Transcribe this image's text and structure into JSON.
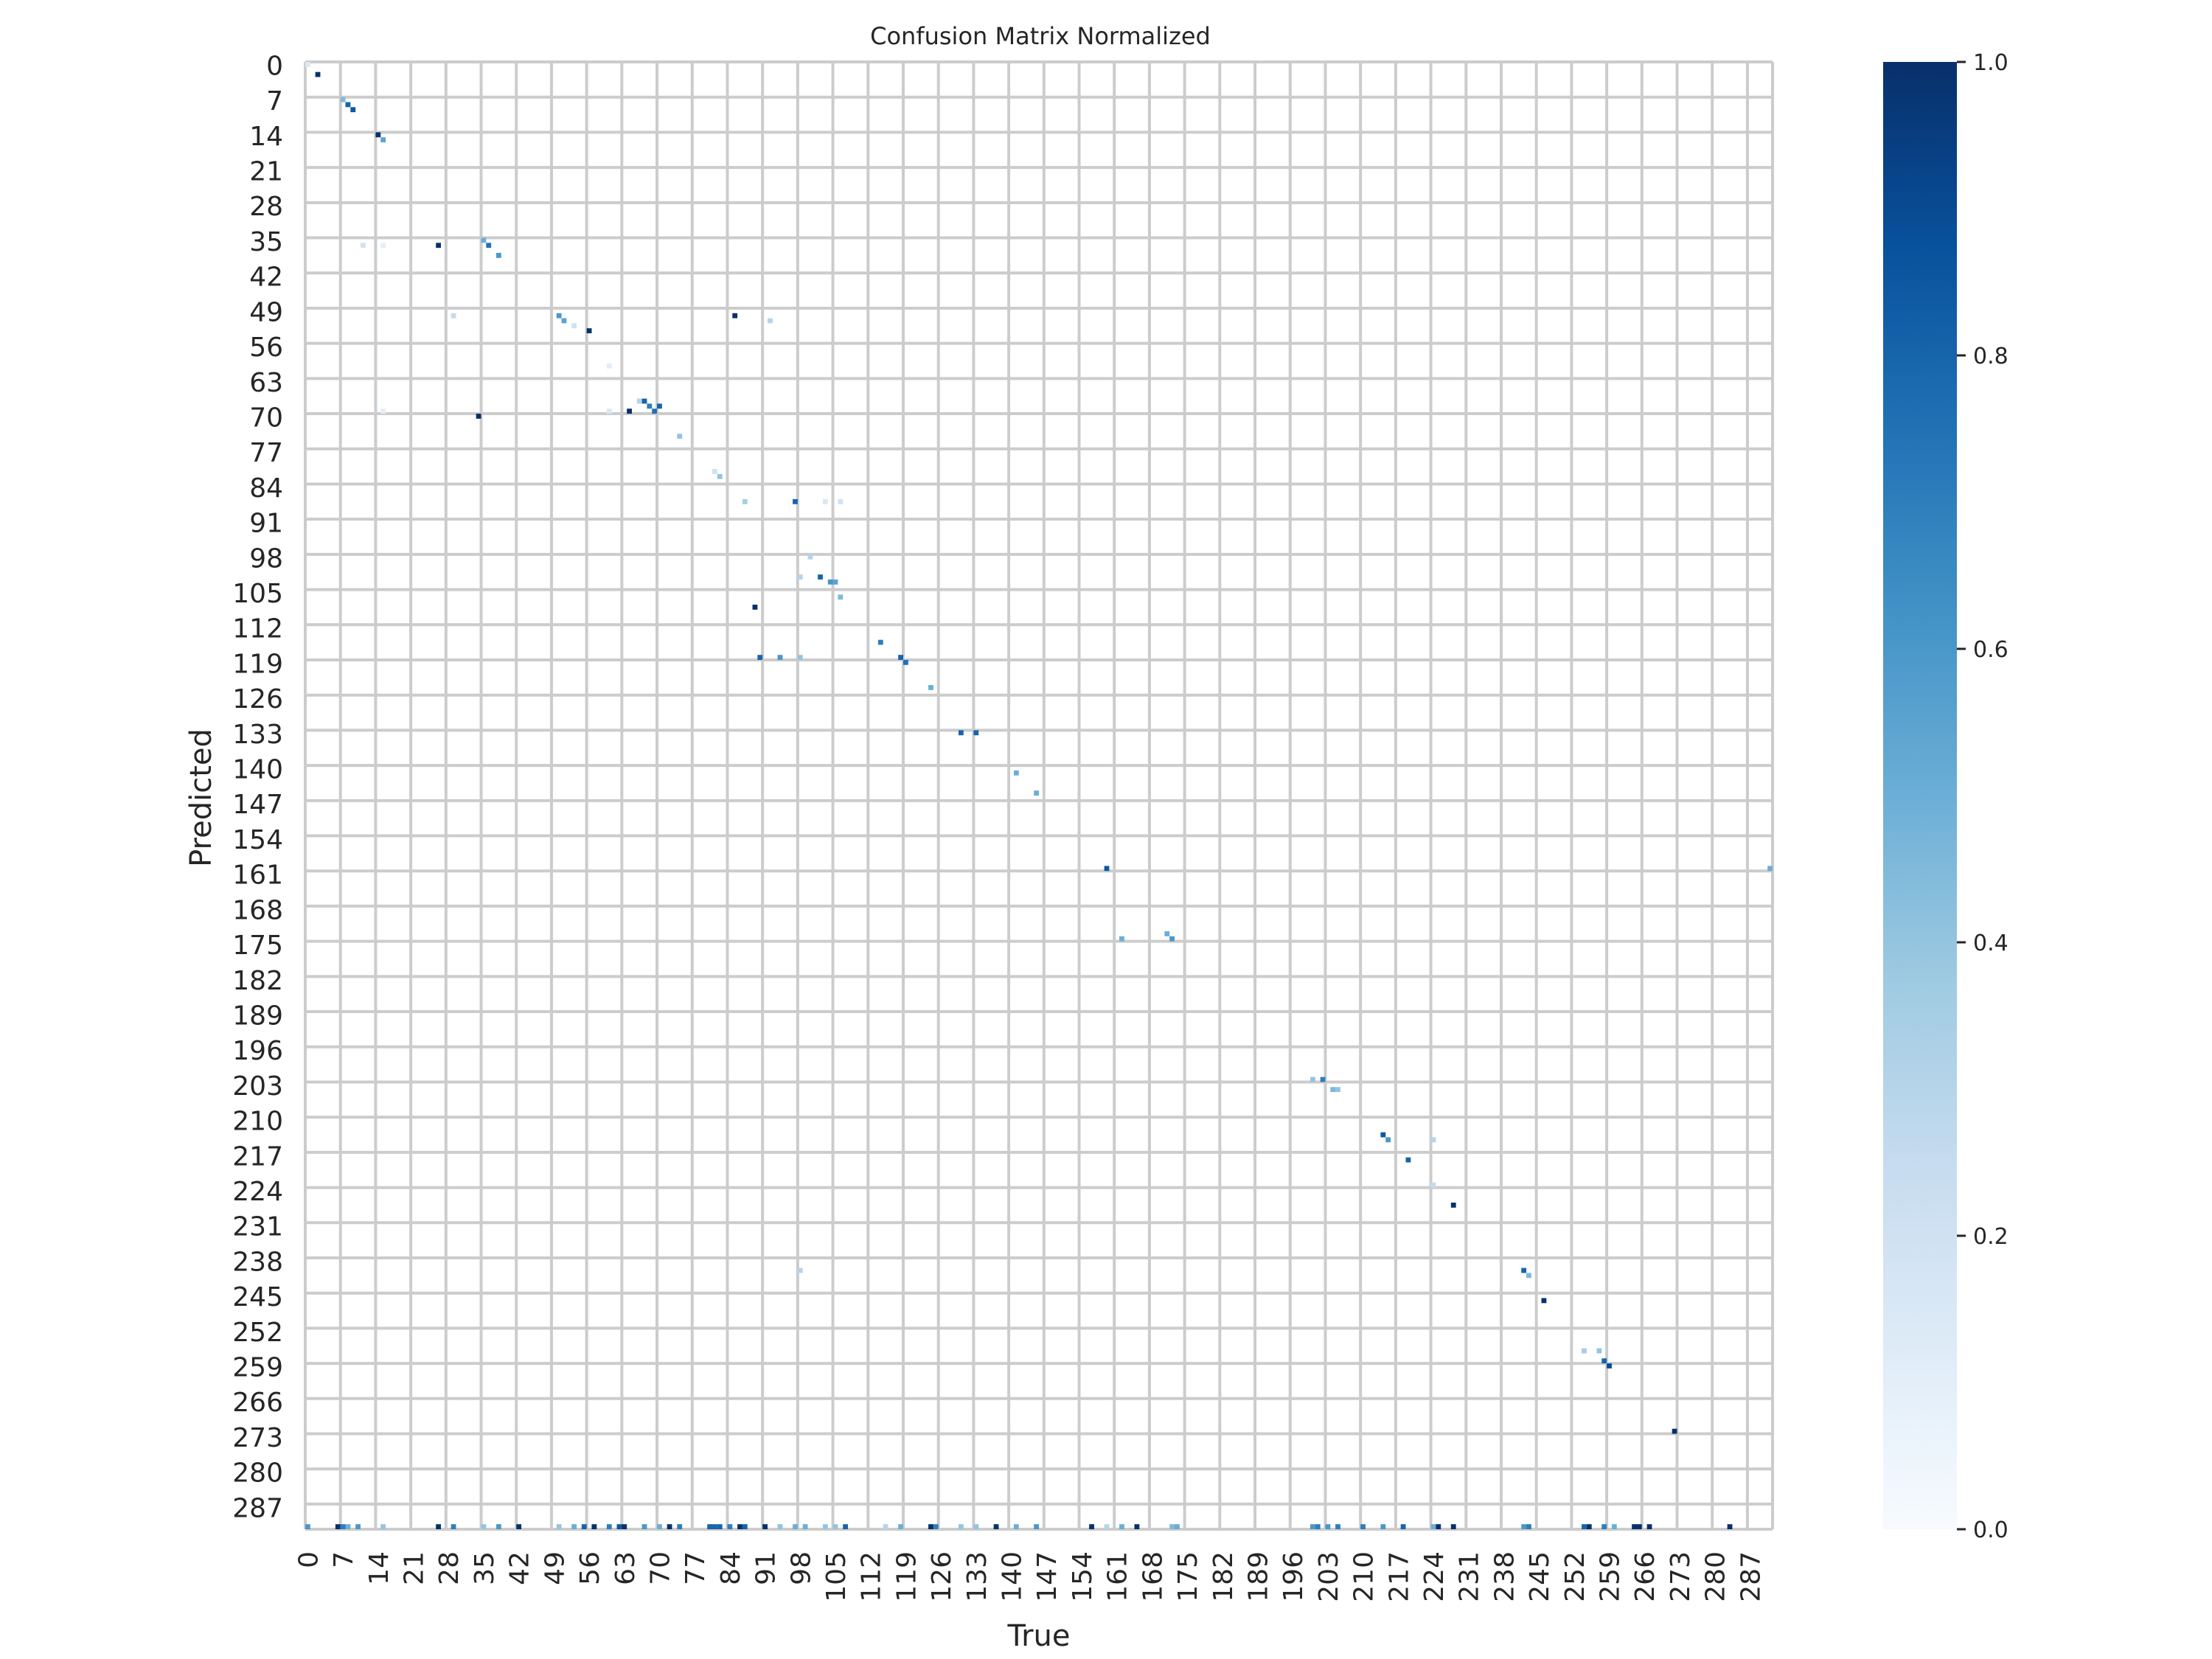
{
  "chart_data": {
    "type": "heatmap",
    "title": "Confusion Matrix Normalized",
    "xlabel": "True",
    "ylabel": "Predicted",
    "n_classes": 292,
    "x_tick_labels": [
      "0",
      "7",
      "14",
      "21",
      "28",
      "35",
      "42",
      "49",
      "56",
      "63",
      "70",
      "77",
      "84",
      "91",
      "98",
      "105",
      "112",
      "119",
      "126",
      "133",
      "140",
      "147",
      "154",
      "161",
      "168",
      "175",
      "182",
      "189",
      "196",
      "203",
      "210",
      "217",
      "224",
      "231",
      "238",
      "245",
      "252",
      "259",
      "266",
      "273",
      "280",
      "287"
    ],
    "y_tick_labels": [
      "0",
      "7",
      "14",
      "21",
      "28",
      "35",
      "42",
      "49",
      "56",
      "63",
      "70",
      "77",
      "84",
      "91",
      "98",
      "105",
      "112",
      "119",
      "126",
      "133",
      "140",
      "147",
      "154",
      "161",
      "168",
      "175",
      "182",
      "189",
      "196",
      "203",
      "210",
      "217",
      "224",
      "231",
      "238",
      "245",
      "252",
      "259",
      "266",
      "273",
      "280",
      "287"
    ],
    "tick_step": 7,
    "colorbar": {
      "colormap": "Blues",
      "range": [
        0.0,
        1.0
      ],
      "tick_labels": [
        "0.0",
        "0.2",
        "0.4",
        "0.6",
        "0.8",
        "1.0"
      ],
      "tick_values": [
        0.0,
        0.2,
        0.4,
        0.6,
        0.8,
        1.0
      ]
    },
    "grid": true,
    "grid_color": "#cccccc",
    "cells_format": "[true_index, predicted_index, value]",
    "cells": [
      [
        0,
        0,
        0.15
      ],
      [
        2,
        2,
        1.0
      ],
      [
        7,
        7,
        0.45
      ],
      [
        8,
        8,
        0.8
      ],
      [
        9,
        9,
        0.85
      ],
      [
        14,
        14,
        1.0
      ],
      [
        15,
        15,
        0.55
      ],
      [
        11,
        36,
        0.2
      ],
      [
        15,
        36,
        0.1
      ],
      [
        26,
        36,
        1.0
      ],
      [
        35,
        35,
        0.5
      ],
      [
        36,
        36,
        0.75
      ],
      [
        38,
        38,
        0.6
      ],
      [
        29,
        50,
        0.25
      ],
      [
        50,
        50,
        0.6
      ],
      [
        51,
        51,
        0.55
      ],
      [
        53,
        52,
        0.2
      ],
      [
        56,
        53,
        1.0
      ],
      [
        85,
        50,
        1.0
      ],
      [
        92,
        51,
        0.3
      ],
      [
        60,
        60,
        0.1
      ],
      [
        15,
        69,
        0.1
      ],
      [
        34,
        70,
        1.0
      ],
      [
        60,
        69,
        0.15
      ],
      [
        64,
        69,
        1.0
      ],
      [
        66,
        67,
        0.3
      ],
      [
        67,
        67,
        0.8
      ],
      [
        68,
        68,
        0.7
      ],
      [
        69,
        69,
        0.75
      ],
      [
        70,
        68,
        0.8
      ],
      [
        74,
        74,
        0.4
      ],
      [
        81,
        81,
        0.2
      ],
      [
        82,
        82,
        0.4
      ],
      [
        87,
        87,
        0.35
      ],
      [
        97,
        87,
        0.8
      ],
      [
        103,
        87,
        0.15
      ],
      [
        106,
        87,
        0.2
      ],
      [
        100,
        98,
        0.3
      ],
      [
        102,
        102,
        0.8
      ],
      [
        98,
        102,
        0.3
      ],
      [
        104,
        103,
        0.6
      ],
      [
        105,
        103,
        0.55
      ],
      [
        106,
        106,
        0.45
      ],
      [
        89,
        108,
        1.0
      ],
      [
        90,
        118,
        0.8
      ],
      [
        94,
        118,
        0.6
      ],
      [
        98,
        118,
        0.4
      ],
      [
        114,
        115,
        0.7
      ],
      [
        118,
        118,
        0.8
      ],
      [
        119,
        119,
        0.75
      ],
      [
        124,
        124,
        0.5
      ],
      [
        130,
        133,
        0.8
      ],
      [
        133,
        133,
        0.8
      ],
      [
        141,
        141,
        0.5
      ],
      [
        145,
        145,
        0.5
      ],
      [
        159,
        160,
        0.85
      ],
      [
        162,
        174,
        0.5
      ],
      [
        171,
        173,
        0.5
      ],
      [
        172,
        174,
        0.6
      ],
      [
        200,
        202,
        0.4
      ],
      [
        202,
        202,
        0.7
      ],
      [
        204,
        204,
        0.45
      ],
      [
        205,
        204,
        0.4
      ],
      [
        214,
        213,
        0.85
      ],
      [
        215,
        214,
        0.6
      ],
      [
        219,
        218,
        0.8
      ],
      [
        224,
        214,
        0.3
      ],
      [
        224,
        223,
        0.25
      ],
      [
        228,
        227,
        1.0
      ],
      [
        242,
        240,
        0.8
      ],
      [
        243,
        241,
        0.45
      ],
      [
        246,
        246,
        1.0
      ],
      [
        254,
        256,
        0.35
      ],
      [
        257,
        256,
        0.4
      ],
      [
        258,
        258,
        0.8
      ],
      [
        259,
        259,
        0.9
      ],
      [
        272,
        272,
        1.0
      ],
      [
        98,
        240,
        0.3
      ],
      [
        291,
        160,
        0.5
      ],
      [
        0,
        291,
        0.6
      ],
      [
        6,
        291,
        1.0
      ],
      [
        7,
        291,
        0.7
      ],
      [
        8,
        291,
        0.5
      ],
      [
        10,
        291,
        0.6
      ],
      [
        15,
        291,
        0.4
      ],
      [
        26,
        291,
        1.0
      ],
      [
        29,
        291,
        0.7
      ],
      [
        35,
        291,
        0.4
      ],
      [
        38,
        291,
        0.6
      ],
      [
        42,
        291,
        1.0
      ],
      [
        50,
        291,
        0.4
      ],
      [
        53,
        291,
        0.5
      ],
      [
        55,
        291,
        0.8
      ],
      [
        57,
        291,
        1.0
      ],
      [
        60,
        291,
        0.7
      ],
      [
        62,
        291,
        0.85
      ],
      [
        63,
        291,
        1.0
      ],
      [
        67,
        291,
        0.6
      ],
      [
        70,
        291,
        0.5
      ],
      [
        72,
        291,
        1.0
      ],
      [
        74,
        291,
        0.7
      ],
      [
        80,
        291,
        0.8
      ],
      [
        81,
        291,
        0.8
      ],
      [
        82,
        291,
        0.8
      ],
      [
        84,
        291,
        0.7
      ],
      [
        86,
        291,
        1.0
      ],
      [
        87,
        291,
        0.8
      ],
      [
        91,
        291,
        1.0
      ],
      [
        94,
        291,
        0.4
      ],
      [
        97,
        291,
        0.5
      ],
      [
        99,
        291,
        0.5
      ],
      [
        103,
        291,
        0.4
      ],
      [
        105,
        291,
        0.4
      ],
      [
        107,
        291,
        0.8
      ],
      [
        115,
        291,
        0.3
      ],
      [
        118,
        291,
        0.5
      ],
      [
        124,
        291,
        1.0
      ],
      [
        125,
        291,
        0.7
      ],
      [
        130,
        291,
        0.4
      ],
      [
        133,
        291,
        0.4
      ],
      [
        137,
        291,
        1.0
      ],
      [
        141,
        291,
        0.5
      ],
      [
        145,
        291,
        0.6
      ],
      [
        156,
        291,
        1.0
      ],
      [
        159,
        291,
        0.3
      ],
      [
        162,
        291,
        0.5
      ],
      [
        165,
        291,
        1.0
      ],
      [
        172,
        291,
        0.45
      ],
      [
        173,
        291,
        0.5
      ],
      [
        200,
        291,
        0.6
      ],
      [
        201,
        291,
        0.7
      ],
      [
        203,
        291,
        0.6
      ],
      [
        205,
        291,
        0.7
      ],
      [
        210,
        291,
        0.7
      ],
      [
        214,
        291,
        0.6
      ],
      [
        218,
        291,
        0.8
      ],
      [
        224,
        291,
        0.5
      ],
      [
        225,
        291,
        1.0
      ],
      [
        228,
        291,
        1.0
      ],
      [
        242,
        291,
        0.6
      ],
      [
        243,
        291,
        0.7
      ],
      [
        254,
        291,
        0.8
      ],
      [
        255,
        291,
        1.0
      ],
      [
        258,
        291,
        0.7
      ],
      [
        260,
        291,
        0.5
      ],
      [
        264,
        291,
        1.0
      ],
      [
        265,
        291,
        1.0
      ],
      [
        267,
        291,
        1.0
      ],
      [
        283,
        291,
        1.0
      ]
    ]
  }
}
